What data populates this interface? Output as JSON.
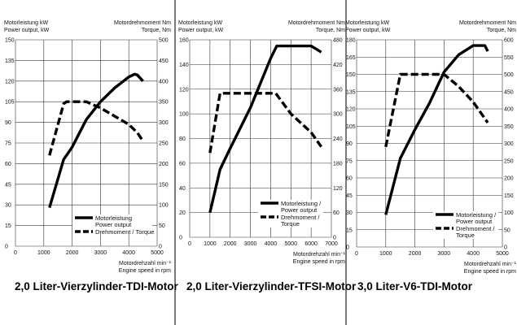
{
  "chart_data": [
    {
      "type": "line",
      "title": "2,0 Liter-Vierzylinder-TDI-Motor",
      "ylabel_left": [
        "Motorleistung kW",
        "Power output, kW"
      ],
      "ylabel_right": [
        "Motordrehmoment Nm",
        "Torque, Nm"
      ],
      "xlabel": [
        "Motordrehzahl min⁻¹",
        "Engine speed in rpm"
      ],
      "xlim": [
        0,
        5000
      ],
      "xticks": [
        0,
        1000,
        2000,
        3000,
        4000,
        5000
      ],
      "ylim_left": [
        0,
        150
      ],
      "yticks_left": [
        0,
        15,
        30,
        45,
        60,
        75,
        90,
        105,
        120,
        135,
        150
      ],
      "ylim_right": [
        0,
        500
      ],
      "yticks_right": [
        0,
        50,
        100,
        150,
        200,
        250,
        300,
        350,
        400,
        450,
        500
      ],
      "grid": true,
      "legend": [
        "Motorleistung",
        "Power output",
        "Drehmoment / Torque"
      ],
      "legend_position": "bottom-right",
      "series": [
        {
          "name": "Motorleistung / Power output",
          "axis": "left",
          "style": "solid",
          "x": [
            1200,
            1700,
            2000,
            2500,
            3000,
            3500,
            4000,
            4200,
            4300,
            4500
          ],
          "y": [
            28,
            63,
            72,
            92,
            105,
            115,
            123,
            125,
            124.5,
            120
          ]
        },
        {
          "name": "Drehmoment / Torque",
          "axis": "right",
          "style": "dashed",
          "x": [
            1200,
            1700,
            1800,
            2500,
            3000,
            3500,
            4000,
            4300,
            4500
          ],
          "y": [
            220,
            345,
            350,
            350,
            335,
            315,
            295,
            275,
            255
          ]
        }
      ]
    },
    {
      "type": "line",
      "title": "2,0 Liter-Vierzylinder-TFSI-Motor",
      "ylabel_left": [
        "Motorleistung kW",
        "Power output, kW"
      ],
      "ylabel_right": [
        "Motordrehmoment Nm",
        "Torque, Nm"
      ],
      "xlabel": [
        "Motordrehzahl min⁻¹",
        "Engine speed in rpm"
      ],
      "xlim": [
        0,
        7000
      ],
      "xticks": [
        0,
        1000,
        2000,
        3000,
        4000,
        5000,
        6000,
        7000
      ],
      "ylim_left": [
        0,
        160
      ],
      "yticks_left": [
        0,
        20,
        40,
        60,
        80,
        100,
        120,
        140,
        160
      ],
      "ylim_right": [
        0,
        480
      ],
      "yticks_right": [
        0,
        60,
        120,
        180,
        240,
        300,
        360,
        420,
        480
      ],
      "grid": true,
      "legend": [
        "Motorleistung /",
        "Power output",
        "Drehmoment /",
        "Torque"
      ],
      "legend_position": "bottom-right",
      "series": [
        {
          "name": "Motorleistung / Power output",
          "axis": "left",
          "style": "solid",
          "x": [
            1000,
            1500,
            2000,
            3000,
            4000,
            4300,
            6000,
            6500
          ],
          "y": [
            20,
            55,
            72,
            105,
            145,
            155,
            155,
            150
          ]
        },
        {
          "name": "Drehmoment / Torque",
          "axis": "right",
          "style": "dashed",
          "x": [
            1000,
            1500,
            4250,
            5000,
            6000,
            6500
          ],
          "y": [
            205,
            350,
            350,
            300,
            255,
            220
          ]
        }
      ]
    },
    {
      "type": "line",
      "title": "3,0 Liter-V6-TDI-Motor",
      "ylabel_left": [
        "Motorleistung kW",
        "Power output, kW"
      ],
      "ylabel_right": [
        "Motordrehmoment Nm",
        "Torque, Nm"
      ],
      "xlabel": [
        "Motordrehzahl min⁻¹",
        "Engine speed in rpm"
      ],
      "xlim": [
        0,
        5000
      ],
      "xticks": [
        0,
        1000,
        2000,
        3000,
        4000,
        5000
      ],
      "ylim_left": [
        0,
        180
      ],
      "yticks_left": [
        0,
        15,
        30,
        45,
        60,
        75,
        90,
        105,
        120,
        135,
        150,
        165,
        180
      ],
      "ylim_right": [
        0,
        600
      ],
      "yticks_right": [
        0,
        50,
        100,
        150,
        200,
        250,
        300,
        350,
        400,
        450,
        500,
        550,
        600
      ],
      "grid": true,
      "legend": [
        "Motorleistung /",
        "Power output",
        "Drehmoment /",
        "Torque"
      ],
      "legend_position": "bottom-right",
      "series": [
        {
          "name": "Motorleistung / Power output",
          "axis": "left",
          "style": "solid",
          "x": [
            1000,
            1500,
            2000,
            2500,
            3000,
            3500,
            4000,
            4400,
            4500
          ],
          "y": [
            28,
            77,
            102,
            125,
            152,
            167,
            175,
            175,
            170
          ]
        },
        {
          "name": "Drehmoment / Torque",
          "axis": "right",
          "style": "dashed",
          "x": [
            1000,
            1500,
            3000,
            3500,
            4000,
            4500
          ],
          "y": [
            290,
            500,
            500,
            465,
            420,
            360
          ]
        }
      ]
    }
  ]
}
